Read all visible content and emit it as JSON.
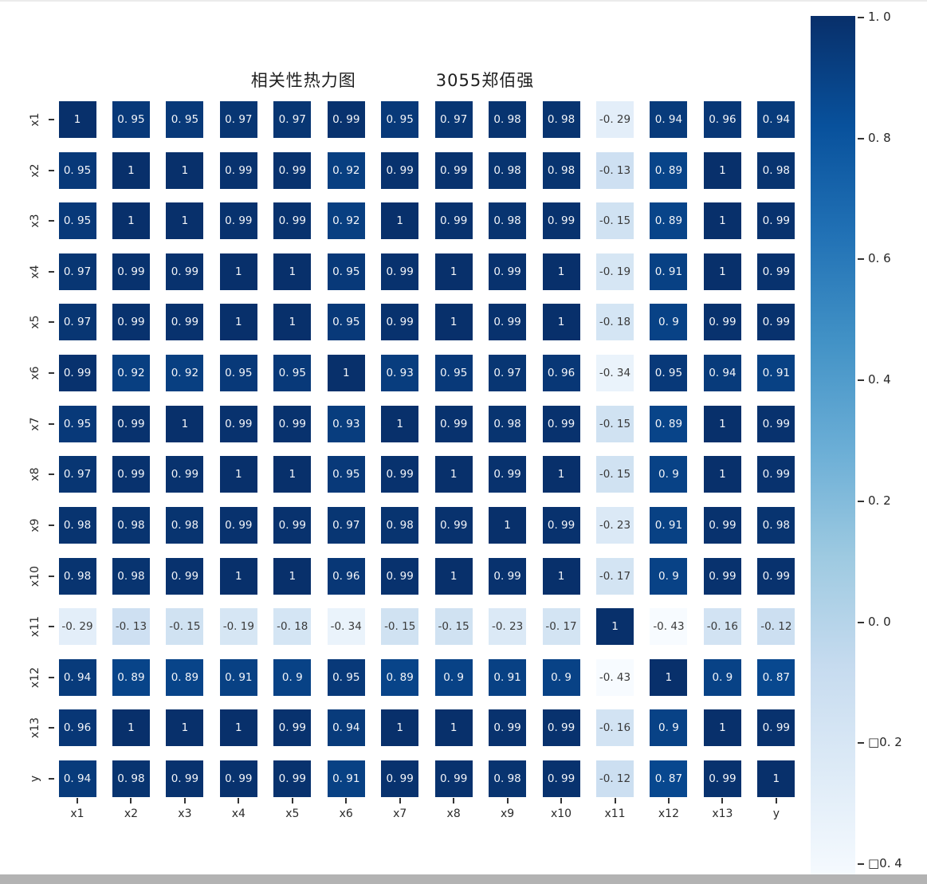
{
  "window": {
    "background": "#ffffff",
    "top_border_color": "#ebebeb",
    "bottom_scrollbar_color": "#b3b3b3"
  },
  "chart_data": {
    "type": "heatmap",
    "title": "相关性热力图",
    "title_annotation": "3055郑佰强",
    "colormap": "Blues",
    "vmin": -0.43,
    "vmax": 1.0,
    "grid": false,
    "annotated": true,
    "value_format": {
      "significant_digits": 2,
      "decimal_separator_rendered": ". "
    },
    "x_labels": [
      "x1",
      "x2",
      "x3",
      "x4",
      "x5",
      "x6",
      "x7",
      "x8",
      "x9",
      "x10",
      "x11",
      "x12",
      "x13",
      "y"
    ],
    "y_labels": [
      "x1",
      "x2",
      "x3",
      "x4",
      "x5",
      "x6",
      "x7",
      "x8",
      "x9",
      "x10",
      "x11",
      "x12",
      "x13",
      "y"
    ],
    "matrix": [
      [
        1,
        0.95,
        0.95,
        0.97,
        0.97,
        0.99,
        0.95,
        0.97,
        0.98,
        0.98,
        -0.29,
        0.94,
        0.96,
        0.94
      ],
      [
        0.95,
        1,
        1,
        0.99,
        0.99,
        0.92,
        0.99,
        0.99,
        0.98,
        0.98,
        -0.13,
        0.89,
        1,
        0.98
      ],
      [
        0.95,
        1,
        1,
        0.99,
        0.99,
        0.92,
        1,
        0.99,
        0.98,
        0.99,
        -0.15,
        0.89,
        1,
        0.99
      ],
      [
        0.97,
        0.99,
        0.99,
        1,
        1,
        0.95,
        0.99,
        1,
        0.99,
        1,
        -0.19,
        0.91,
        1,
        0.99
      ],
      [
        0.97,
        0.99,
        0.99,
        1,
        1,
        0.95,
        0.99,
        1,
        0.99,
        1,
        -0.18,
        0.9,
        0.99,
        0.99
      ],
      [
        0.99,
        0.92,
        0.92,
        0.95,
        0.95,
        1,
        0.93,
        0.95,
        0.97,
        0.96,
        -0.34,
        0.95,
        0.94,
        0.91
      ],
      [
        0.95,
        0.99,
        1,
        0.99,
        0.99,
        0.93,
        1,
        0.99,
        0.98,
        0.99,
        -0.15,
        0.89,
        1,
        0.99
      ],
      [
        0.97,
        0.99,
        0.99,
        1,
        1,
        0.95,
        0.99,
        1,
        0.99,
        1,
        -0.15,
        0.9,
        1,
        0.99
      ],
      [
        0.98,
        0.98,
        0.98,
        0.99,
        0.99,
        0.97,
        0.98,
        0.99,
        1,
        0.99,
        -0.23,
        0.91,
        0.99,
        0.98
      ],
      [
        0.98,
        0.98,
        0.99,
        1,
        1,
        0.96,
        0.99,
        1,
        0.99,
        1,
        -0.17,
        0.9,
        0.99,
        0.99
      ],
      [
        -0.29,
        -0.13,
        -0.15,
        -0.19,
        -0.18,
        -0.34,
        -0.15,
        -0.15,
        -0.23,
        -0.17,
        1,
        -0.43,
        -0.16,
        -0.12
      ],
      [
        0.94,
        0.89,
        0.89,
        0.91,
        0.9,
        0.95,
        0.89,
        0.9,
        0.91,
        0.9,
        -0.43,
        1,
        0.9,
        0.87
      ],
      [
        0.96,
        1,
        1,
        1,
        0.99,
        0.94,
        1,
        1,
        0.99,
        0.99,
        -0.16,
        0.9,
        1,
        0.99
      ],
      [
        0.94,
        0.98,
        0.99,
        0.99,
        0.99,
        0.91,
        0.99,
        0.99,
        0.98,
        0.99,
        -0.12,
        0.87,
        0.99,
        1
      ]
    ],
    "colorbar": {
      "orientation": "vertical",
      "position": "right",
      "tick_values": [
        1.0,
        0.8,
        0.6,
        0.4,
        0.2,
        0.0,
        -0.2,
        -0.4
      ],
      "tick_labels": [
        "1. 0",
        "0. 8",
        "0. 6",
        "0. 4",
        "0. 2",
        "0. 0",
        "□0. 2",
        "□0. 4"
      ],
      "top_color": "#08306b",
      "bottom_color": "#f7fbff"
    }
  }
}
